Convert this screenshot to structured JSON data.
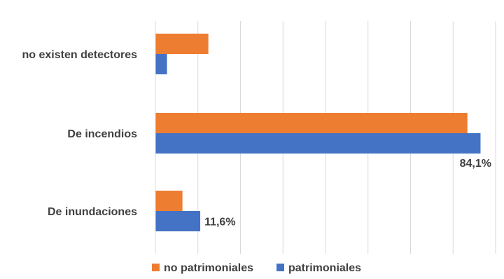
{
  "chart_data": {
    "type": "bar",
    "orientation": "horizontal",
    "categories": [
      "no existen detectores",
      "De incendios",
      "De inundaciones"
    ],
    "series": [
      {
        "name": "no patrimoniales",
        "color": "#ED7D31",
        "values": [
          13.7,
          80.7,
          7.0
        ]
      },
      {
        "name": "patrimoniales",
        "color": "#4472C4",
        "values": [
          3.0,
          84.1,
          11.6
        ]
      }
    ],
    "data_labels": [
      {
        "series": 1,
        "category": 1,
        "text": "84,1%"
      },
      {
        "series": 1,
        "category": 2,
        "text": "11,6%"
      }
    ],
    "xlim": [
      0,
      88
    ],
    "grid": true,
    "legend_position": "bottom",
    "title": "",
    "xlabel": "",
    "ylabel": ""
  }
}
